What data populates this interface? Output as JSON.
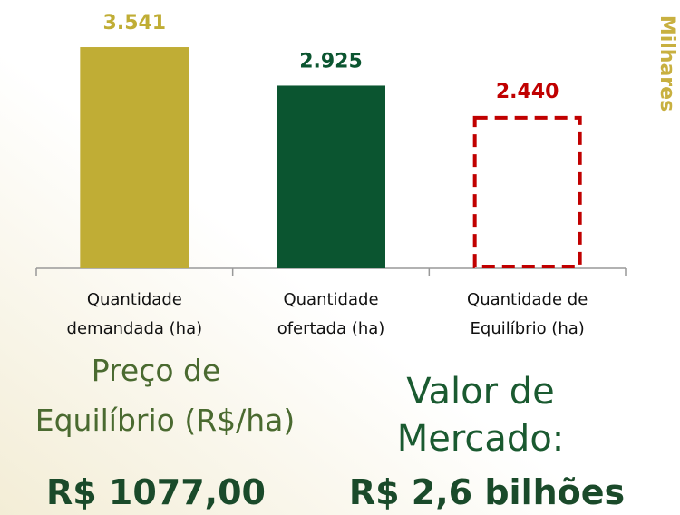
{
  "chart_data": {
    "type": "bar",
    "categories": [
      [
        "Quantidade",
        "demandada (ha)"
      ],
      [
        "Quantidade",
        "ofertada (ha)"
      ],
      [
        "Quantidade de",
        "Equilíbrio (ha)"
      ]
    ],
    "values": [
      3541,
      2925,
      2440
    ],
    "value_labels": [
      "3.541",
      "2.925",
      "2.440"
    ],
    "colors": [
      "#c0ad35",
      "#0b5530",
      "#c00000"
    ],
    "dashed": [
      false,
      false,
      true
    ],
    "unit_label": "Milhares"
  },
  "summary": {
    "price": {
      "label": [
        "Preço de",
        "Equilíbrio (R$/ha)"
      ],
      "value": "R$ 1077,00"
    },
    "market": {
      "label": [
        "Valor de",
        "Mercado:"
      ],
      "value": "R$ 2,6 bilhões"
    }
  }
}
